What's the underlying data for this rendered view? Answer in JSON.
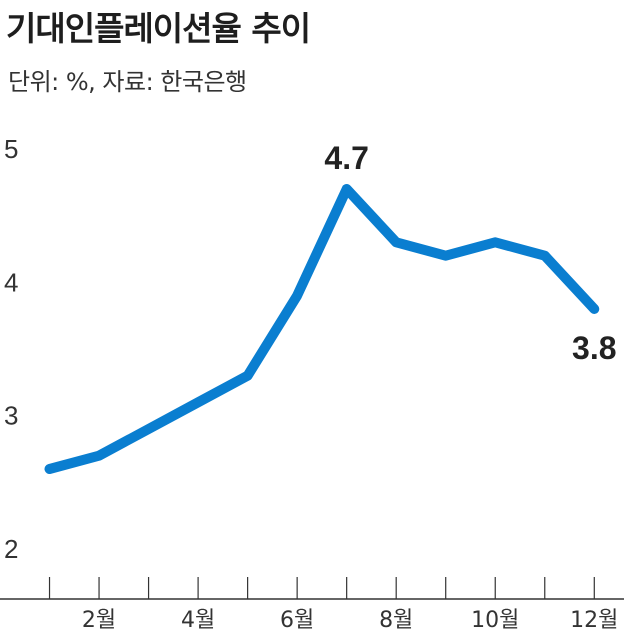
{
  "title": "기대인플레이션율 추이",
  "subtitle": "단위: %, 자료: 한국은행",
  "colors": {
    "line": "#0a7ed0",
    "axis": "#333333"
  },
  "chart_data": {
    "type": "line",
    "title": "기대인플레이션율 추이",
    "unit": "%",
    "source": "한국은행",
    "x": [
      1,
      2,
      3,
      4,
      5,
      6,
      7,
      8,
      9,
      10,
      11,
      12
    ],
    "values": [
      2.6,
      2.7,
      2.9,
      3.1,
      3.3,
      3.9,
      4.7,
      4.3,
      4.2,
      4.3,
      4.2,
      3.8
    ],
    "x_tick_labels": [
      {
        "x": 2,
        "label": "2월"
      },
      {
        "x": 4,
        "label": "4월"
      },
      {
        "x": 6,
        "label": "6월"
      },
      {
        "x": 8,
        "label": "8월"
      },
      {
        "x": 10,
        "label": "10월"
      },
      {
        "x": 12,
        "label": "12월"
      }
    ],
    "y_ticks": [
      {
        "value": 2,
        "label": "2"
      },
      {
        "value": 3,
        "label": "3"
      },
      {
        "value": 4,
        "label": "4"
      },
      {
        "value": 5,
        "label": "5"
      }
    ],
    "data_labels": [
      {
        "x": 7,
        "value": 4.7,
        "label": "4.7"
      },
      {
        "x": 12,
        "value": 3.8,
        "label": "3.8"
      }
    ],
    "xlim": [
      0,
      12.6
    ],
    "ylim": [
      2,
      5
    ],
    "grid": false,
    "legend": "none"
  }
}
